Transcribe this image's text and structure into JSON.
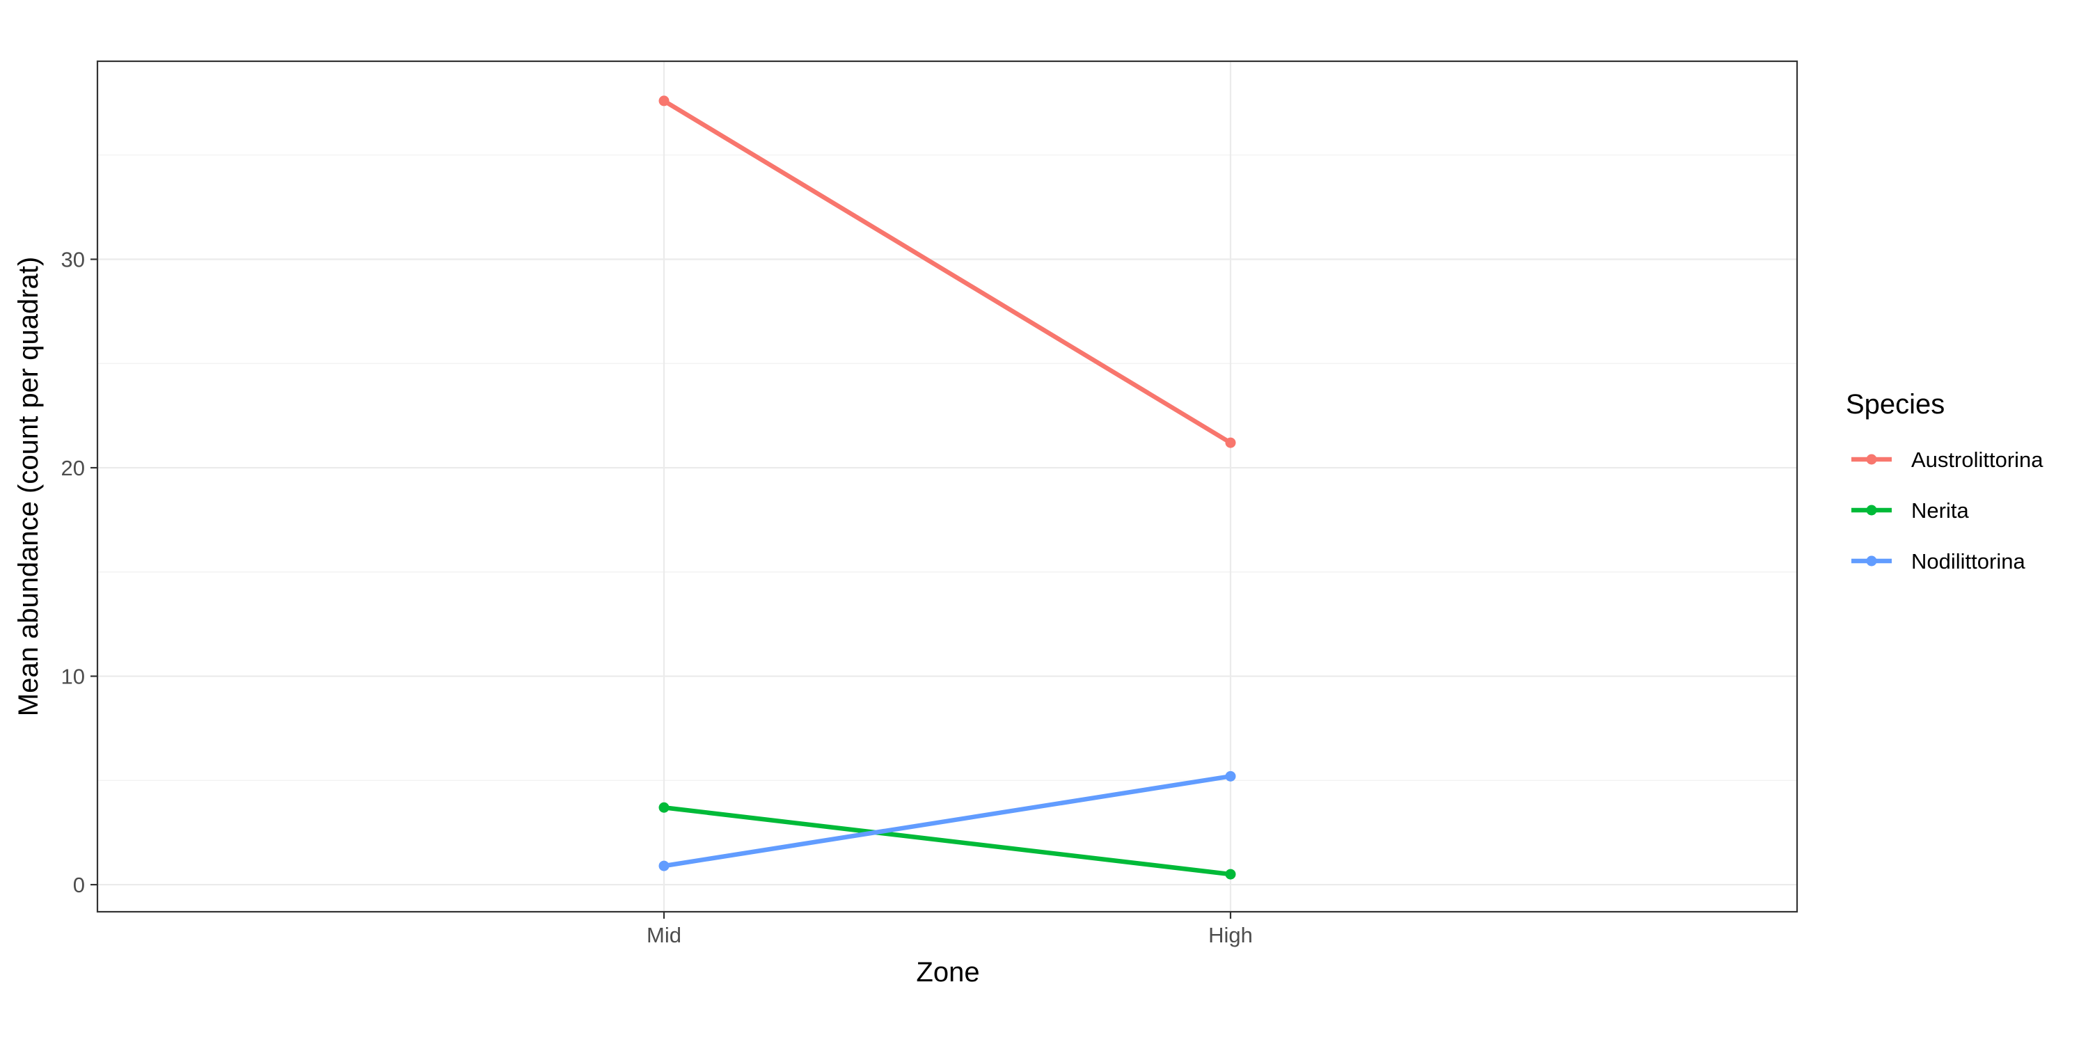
{
  "chart_data": {
    "type": "line",
    "xlabel": "Zone",
    "ylabel": "Mean abundance (count per quadrat)",
    "categories": [
      "Mid",
      "High"
    ],
    "ylim": [
      -1.3,
      39.5
    ],
    "yticks": [
      0,
      10,
      20,
      30
    ],
    "yticklabels": [
      "0",
      "10",
      "20",
      "30"
    ],
    "grid": true,
    "legend": {
      "title": "Species",
      "position": "right"
    },
    "series": [
      {
        "name": "Austrolittorina",
        "values": [
          37.6,
          21.2
        ],
        "color": "#F8766D"
      },
      {
        "name": "Nerita",
        "values": [
          3.7,
          0.5
        ],
        "color": "#00BA38"
      },
      {
        "name": "Nodilittorina",
        "values": [
          0.9,
          5.2
        ],
        "color": "#619CFF"
      }
    ]
  }
}
